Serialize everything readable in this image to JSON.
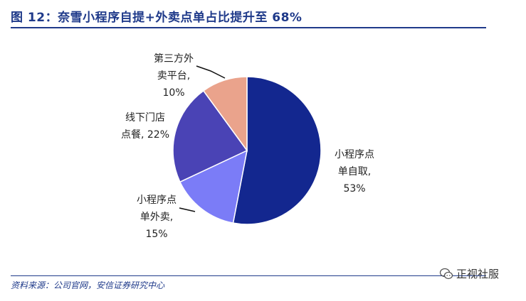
{
  "title": "图 12：奈雪小程序自提+外卖点单占比提升至 68%",
  "source": "资料来源：公司官网，安信证券研究中心",
  "watermark": "正视社服",
  "chart_data": {
    "type": "pie",
    "slices": [
      {
        "lines": [
          "小程序点",
          "单自取,",
          "53%"
        ],
        "value": 53,
        "color": "#13278f"
      },
      {
        "lines": [
          "小程序点",
          "单外卖,",
          "15%"
        ],
        "value": 15,
        "color": "#7b7cf7"
      },
      {
        "lines": [
          "线下门店",
          "点餐, 22%"
        ],
        "value": 22,
        "color": "#4a43b5"
      },
      {
        "lines": [
          "第三方外",
          "卖平台,",
          "10%"
        ],
        "value": 10,
        "color": "#eaa38c"
      }
    ]
  }
}
